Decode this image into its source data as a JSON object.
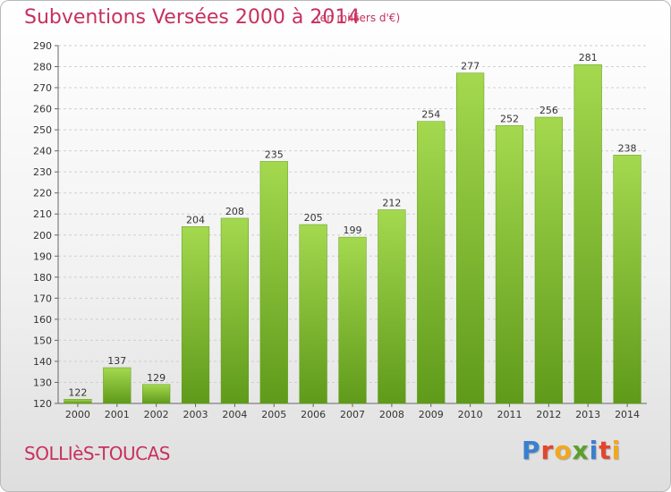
{
  "header": {
    "title": "Subventions Versées 2000 à 2014",
    "subtitle": "(en milliers d'€)"
  },
  "footer": {
    "commune": "SOLLIèS-TOUCAS",
    "brand": "Proxiti",
    "brand_colors": [
      "#3a7fd0",
      "#e3452b",
      "#f1a81f",
      "#5aa02c",
      "#3a7fd0",
      "#e3452b",
      "#f1a81f"
    ]
  },
  "chart_data": {
    "type": "bar",
    "title": "Subventions Versées 2000 à 2014",
    "subtitle": "(en milliers d'€)",
    "categories": [
      "2000",
      "2001",
      "2002",
      "2003",
      "2004",
      "2005",
      "2006",
      "2007",
      "2008",
      "2009",
      "2010",
      "2011",
      "2012",
      "2013",
      "2014"
    ],
    "values": [
      122,
      137,
      129,
      204,
      208,
      235,
      205,
      199,
      212,
      254,
      277,
      252,
      256,
      281,
      238
    ],
    "ylim": [
      120,
      290
    ],
    "yticks": [
      120,
      130,
      140,
      150,
      160,
      170,
      180,
      190,
      200,
      210,
      220,
      230,
      240,
      250,
      260,
      270,
      280,
      290
    ],
    "grid": true,
    "bar_color": "#7cbd2e",
    "bar_color_light": "#a4d94f",
    "bar_color_dark": "#5f9a1a",
    "legend": "none"
  }
}
